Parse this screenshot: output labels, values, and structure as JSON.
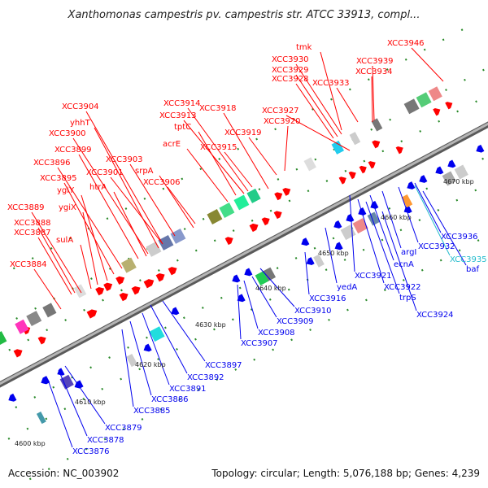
{
  "title": "Xanthomonas campestris pv. campestris str. ATCC 33913, compl...",
  "footer": {
    "accession": "Accession: NC_003902",
    "summary": "Topology: circular; Length: 5,076,188 bp; Genes: 4,239"
  },
  "colors": {
    "forward": "#ff0000",
    "reverse": "#0000ee",
    "rna": "#22bbcc",
    "backbone": "#8a8a8a",
    "tick": "#2a8a2a"
  },
  "kbp_marks": [
    "4600 kbp",
    "4610 kbp",
    "4620 kbp",
    "4630 kbp",
    "4640 kbp",
    "4650 kbp",
    "4660 kbp",
    "4670 kbp"
  ],
  "top_labels": [
    "XCC3946",
    "tmk",
    "XCC3930",
    "XCC3929",
    "XCC3928",
    "XCC3939",
    "XCC3934",
    "XCC3933",
    "XCC3927",
    "XCC3920",
    "XCC3919",
    "XCC3918",
    "XCC3914",
    "XCC3913",
    "tptC",
    "acrE",
    "XCC3915",
    "XCC3904",
    "yhhT",
    "XCC3900",
    "XCC3899",
    "XCC3903",
    "XCC3896",
    "XCC3901",
    "srpA",
    "XCC3906",
    "XCC3895",
    "ygiY",
    "htrA",
    "XCC3889",
    "ygiX",
    "XCC3888",
    "XCC3887",
    "sulA",
    "XCC3884"
  ],
  "bottom_labels": [
    "XCC3936",
    "XCC3932",
    "argI",
    "XCC3935",
    "baf",
    "ecnA",
    "XCC3921",
    "XCC3922",
    "trpS",
    "yedA",
    "XCC3916",
    "XCC3924",
    "XCC3910",
    "XCC3909",
    "XCC3908",
    "XCC3907",
    "XCC3897",
    "XCC3892",
    "XCC3891",
    "XCC3886",
    "XCC3885",
    "XCC3879",
    "XCC3878",
    "XCC3876"
  ]
}
